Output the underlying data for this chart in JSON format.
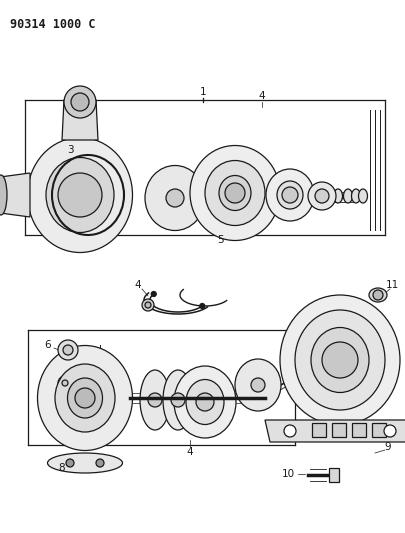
{
  "title": "90314 1000 C",
  "bg_color": "#ffffff",
  "line_color": "#1a1a1a",
  "figsize": [
    4.05,
    5.33
  ],
  "dpi": 100
}
